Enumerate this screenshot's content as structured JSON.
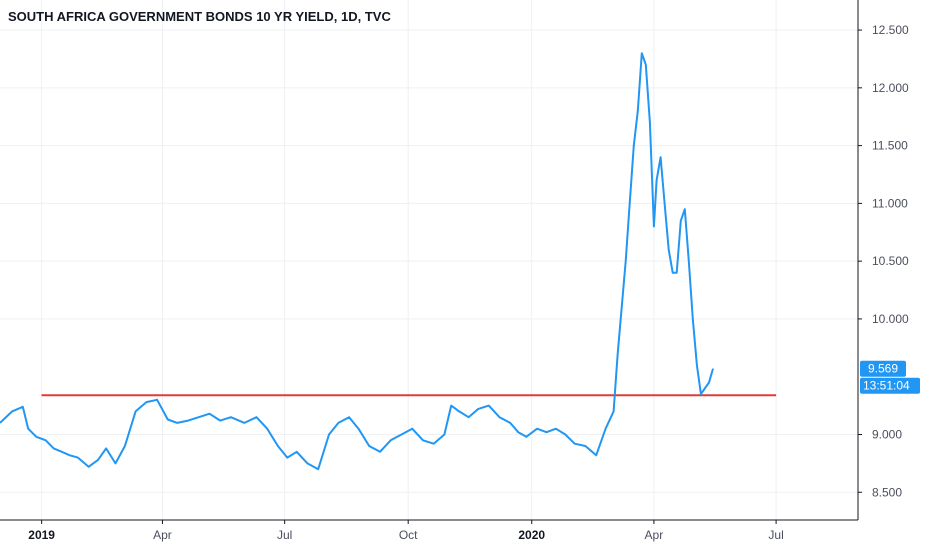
{
  "chart_data": {
    "type": "line",
    "title": "SOUTH AFRICA GOVERNMENT BONDS 10 YR YIELD, 1D, TVC",
    "xlabel": "",
    "ylabel": "",
    "x_range": [
      "2018-12-01",
      "2020-08-31"
    ],
    "ylim": [
      8.26,
      12.76
    ],
    "y_ticks": [
      "12.500",
      "12.000",
      "11.500",
      "11.000",
      "10.500",
      "10.000",
      "9.000",
      "8.500"
    ],
    "x_ticks": [
      {
        "label": "2019",
        "date": "2019-01-01",
        "bold": true
      },
      {
        "label": "Apr",
        "date": "2019-04-01",
        "bold": false
      },
      {
        "label": "Jul",
        "date": "2019-07-01",
        "bold": false
      },
      {
        "label": "Oct",
        "date": "2019-10-01",
        "bold": false
      },
      {
        "label": "2020",
        "date": "2020-01-01",
        "bold": true
      },
      {
        "label": "Apr",
        "date": "2020-04-01",
        "bold": false
      },
      {
        "label": "Jul",
        "date": "2020-07-01",
        "bold": false
      }
    ],
    "grid": true,
    "series": [
      {
        "color": "#2196f3",
        "x": [
          "2018-12-01",
          "2018-12-10",
          "2018-12-18",
          "2018-12-22",
          "2018-12-28",
          "2019-01-04",
          "2019-01-10",
          "2019-01-16",
          "2019-01-22",
          "2019-01-28",
          "2019-02-05",
          "2019-02-12",
          "2019-02-18",
          "2019-02-25",
          "2019-03-04",
          "2019-03-12",
          "2019-03-20",
          "2019-03-28",
          "2019-04-05",
          "2019-04-12",
          "2019-04-20",
          "2019-04-28",
          "2019-05-06",
          "2019-05-14",
          "2019-05-22",
          "2019-06-01",
          "2019-06-10",
          "2019-06-18",
          "2019-06-26",
          "2019-07-03",
          "2019-07-10",
          "2019-07-18",
          "2019-07-26",
          "2019-08-03",
          "2019-08-10",
          "2019-08-18",
          "2019-08-25",
          "2019-09-02",
          "2019-09-10",
          "2019-09-18",
          "2019-09-26",
          "2019-10-04",
          "2019-10-12",
          "2019-10-20",
          "2019-10-28",
          "2019-11-02",
          "2019-11-08",
          "2019-11-15",
          "2019-11-22",
          "2019-11-30",
          "2019-12-08",
          "2019-12-16",
          "2019-12-22",
          "2019-12-28",
          "2020-01-05",
          "2020-01-12",
          "2020-01-19",
          "2020-01-26",
          "2020-02-02",
          "2020-02-10",
          "2020-02-18",
          "2020-02-25",
          "2020-03-02",
          "2020-03-05",
          "2020-03-08",
          "2020-03-11",
          "2020-03-14",
          "2020-03-17",
          "2020-03-20",
          "2020-03-23",
          "2020-03-26",
          "2020-03-29",
          "2020-04-01",
          "2020-04-03",
          "2020-04-06",
          "2020-04-09",
          "2020-04-12",
          "2020-04-15",
          "2020-04-18",
          "2020-04-21",
          "2020-04-24",
          "2020-04-27",
          "2020-04-30",
          "2020-05-03",
          "2020-05-06",
          "2020-05-09",
          "2020-05-12",
          "2020-05-15"
        ],
        "values": [
          9.1,
          9.2,
          9.24,
          9.05,
          8.98,
          8.95,
          8.88,
          8.85,
          8.82,
          8.8,
          8.72,
          8.78,
          8.88,
          8.75,
          8.9,
          9.2,
          9.28,
          9.3,
          9.13,
          9.1,
          9.12,
          9.15,
          9.18,
          9.12,
          9.15,
          9.1,
          9.15,
          9.05,
          8.9,
          8.8,
          8.85,
          8.75,
          8.7,
          9.0,
          9.1,
          9.15,
          9.05,
          8.9,
          8.85,
          8.95,
          9.0,
          9.05,
          8.95,
          8.92,
          9.0,
          9.25,
          9.2,
          9.15,
          9.22,
          9.25,
          9.15,
          9.1,
          9.02,
          8.98,
          9.05,
          9.02,
          9.05,
          9.0,
          8.92,
          8.9,
          8.82,
          9.05,
          9.2,
          9.7,
          10.1,
          10.5,
          11.0,
          11.5,
          11.8,
          12.3,
          12.2,
          11.7,
          10.8,
          11.2,
          11.4,
          11.0,
          10.6,
          10.4,
          10.4,
          10.85,
          10.95,
          10.5,
          10.0,
          9.6,
          9.35,
          9.4,
          9.45,
          9.57
        ]
      }
    ],
    "reference_line": {
      "value": 9.34,
      "from": "2019-01-01",
      "to": "2020-07-01",
      "color": "#e53935"
    },
    "last_value": {
      "label": "9.569",
      "countdown": "13:51:04",
      "value": 9.569,
      "color": "#2196f3"
    }
  }
}
